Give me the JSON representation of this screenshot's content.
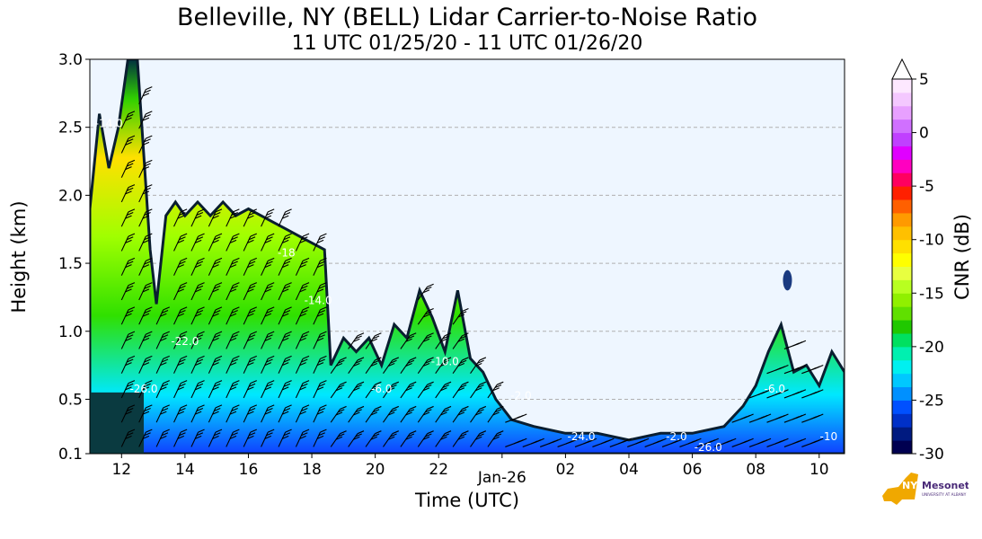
{
  "chart_data": {
    "type": "heatmap",
    "title": "Belleville, NY (BELL) Lidar Carrier-to-Noise Ratio",
    "subtitle": "11 UTC 01/25/20 - 11 UTC 01/26/20",
    "xlabel": "Time (UTC)",
    "ylabel": "Height (km)",
    "x_ticks": [
      "12",
      "14",
      "16",
      "18",
      "20",
      "22",
      "Jan-26",
      "02",
      "04",
      "06",
      "08",
      "10"
    ],
    "x_tick_hours": [
      12,
      14,
      16,
      18,
      20,
      22,
      24,
      26,
      28,
      30,
      32,
      34
    ],
    "xlim_hours": [
      11,
      34.8
    ],
    "y_ticks": [
      "0.1",
      "0.5",
      "1.0",
      "1.5",
      "2.0",
      "2.5",
      "3.0"
    ],
    "y_tick_values": [
      0.1,
      0.5,
      1.0,
      1.5,
      2.0,
      2.5,
      3.0
    ],
    "ylim": [
      0.1,
      3.0
    ],
    "grid": "horizontal dashed",
    "colorbar": {
      "label": "CNR (dB)",
      "ticks": [
        "5",
        "0",
        "-5",
        "-10",
        "-15",
        "-20",
        "-25",
        "-30"
      ],
      "tick_values": [
        5,
        0,
        -5,
        -10,
        -15,
        -20,
        -25,
        -30
      ],
      "range": [
        -30,
        5
      ],
      "extend": "max"
    },
    "contour_labels": [
      "-14.0",
      "-26.0",
      "-22.0",
      "-18",
      "-14.0",
      "-6.0",
      "-10.0",
      "-2.0",
      "-24.0",
      "-2.0",
      "-26.0",
      "-6.0",
      "-10"
    ],
    "cloud_top_km": [
      [
        11.0,
        1.9
      ],
      [
        11.3,
        2.6
      ],
      [
        11.6,
        2.2
      ],
      [
        11.9,
        2.5
      ],
      [
        12.2,
        3.0
      ],
      [
        12.5,
        3.0
      ],
      [
        12.7,
        2.3
      ],
      [
        12.9,
        1.6
      ],
      [
        13.1,
        1.2
      ],
      [
        13.4,
        1.85
      ],
      [
        13.7,
        1.95
      ],
      [
        14.0,
        1.85
      ],
      [
        14.4,
        1.95
      ],
      [
        14.8,
        1.85
      ],
      [
        15.2,
        1.95
      ],
      [
        15.6,
        1.85
      ],
      [
        16.0,
        1.9
      ],
      [
        16.4,
        1.85
      ],
      [
        16.8,
        1.8
      ],
      [
        17.2,
        1.75
      ],
      [
        17.6,
        1.7
      ],
      [
        18.0,
        1.65
      ],
      [
        18.4,
        1.6
      ],
      [
        18.6,
        0.75
      ],
      [
        19.0,
        0.95
      ],
      [
        19.4,
        0.85
      ],
      [
        19.8,
        0.95
      ],
      [
        20.2,
        0.75
      ],
      [
        20.6,
        1.05
      ],
      [
        21.0,
        0.95
      ],
      [
        21.4,
        1.3
      ],
      [
        21.8,
        1.1
      ],
      [
        22.2,
        0.85
      ],
      [
        22.6,
        1.3
      ],
      [
        23.0,
        0.8
      ],
      [
        23.4,
        0.7
      ],
      [
        23.8,
        0.5
      ],
      [
        24.3,
        0.35
      ],
      [
        25.0,
        0.3
      ],
      [
        26.0,
        0.25
      ],
      [
        27.0,
        0.25
      ],
      [
        28.0,
        0.2
      ],
      [
        29.0,
        0.25
      ],
      [
        30.0,
        0.25
      ],
      [
        31.0,
        0.3
      ],
      [
        31.6,
        0.45
      ],
      [
        32.0,
        0.6
      ],
      [
        32.4,
        0.85
      ],
      [
        32.8,
        1.05
      ],
      [
        33.2,
        0.7
      ],
      [
        33.6,
        0.75
      ],
      [
        34.0,
        0.6
      ],
      [
        34.4,
        0.85
      ],
      [
        34.8,
        0.7
      ]
    ],
    "isolated_cloud": {
      "hour": 33.0,
      "km_range": [
        1.3,
        1.45
      ]
    },
    "low_cloud": {
      "hour_range": [
        11.0,
        12.7
      ],
      "top_km": 0.55
    }
  },
  "logo": {
    "text1": "NYS",
    "text2": "Mesonet",
    "text3": "UNIVERSITY AT ALBANY"
  }
}
